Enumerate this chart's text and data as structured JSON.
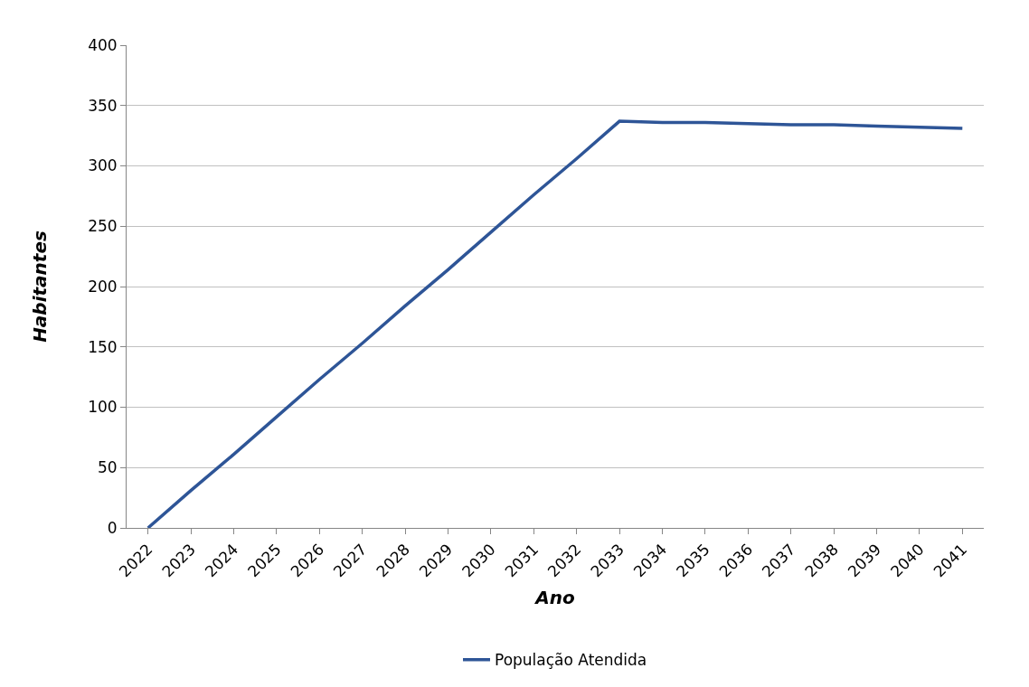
{
  "chart_data": {
    "type": "line",
    "xlabel": "Ano",
    "ylabel": "Habitantes",
    "categories": [
      "2022",
      "2023",
      "2024",
      "2025",
      "2026",
      "2027",
      "2028",
      "2029",
      "2030",
      "2031",
      "2032",
      "2033",
      "2034",
      "2035",
      "2036",
      "2037",
      "2038",
      "2039",
      "2040",
      "2041"
    ],
    "series": [
      {
        "name": "População Atendida",
        "color": "#2e5597",
        "values": [
          0,
          31,
          61,
          92,
          123,
          153,
          184,
          214,
          245,
          276,
          306,
          337,
          336,
          336,
          335,
          334,
          334,
          333,
          332,
          331
        ]
      }
    ],
    "ylim": [
      0,
      400
    ],
    "yticks": [
      0,
      50,
      100,
      150,
      200,
      250,
      300,
      350,
      400
    ],
    "grid": "y",
    "legend": "bottom",
    "marker": "none",
    "line_style": "solid"
  }
}
